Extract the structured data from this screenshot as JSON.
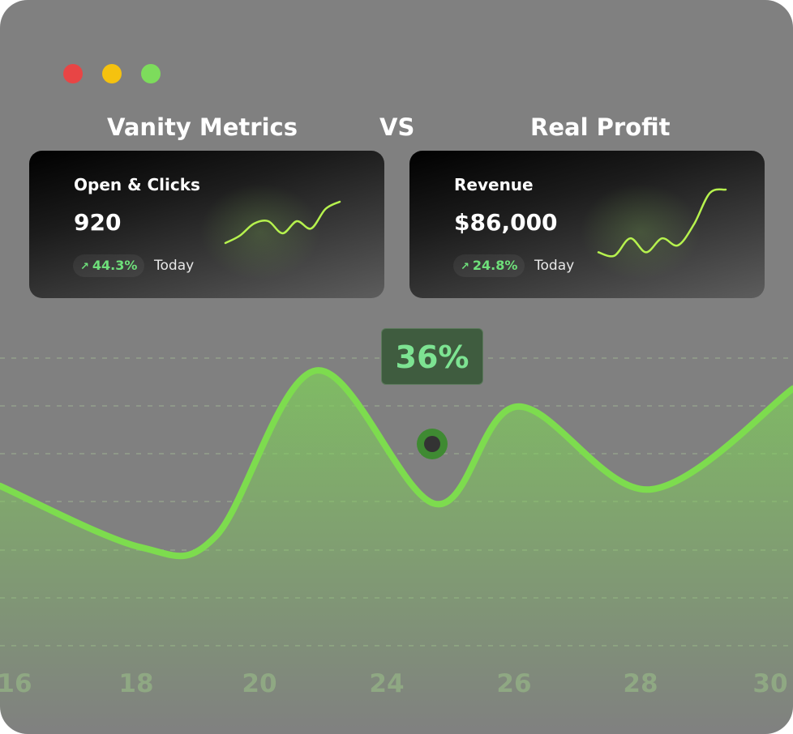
{
  "window": {
    "controls": [
      {
        "name": "close",
        "color": "#e84545"
      },
      {
        "name": "minimize",
        "color": "#f5c20f"
      },
      {
        "name": "maximize",
        "color": "#7ddc5c"
      }
    ]
  },
  "comparison": {
    "left_title": "Vanity Metrics",
    "vs_label": "VS",
    "right_title": "Real Profit"
  },
  "cards": [
    {
      "label": "Open & Clicks",
      "value": "920",
      "change_icon": "trend-up-arrow",
      "change": "44.3%",
      "period": "Today",
      "sparkline": [
        0.1,
        0.25,
        0.5,
        0.55,
        0.3,
        0.55,
        0.4,
        0.8,
        0.95
      ]
    },
    {
      "label": "Revenue",
      "value": "$86,000",
      "change_icon": "trend-up-arrow",
      "change": "24.8%",
      "period": "Today",
      "sparkline": [
        0.1,
        0.05,
        0.3,
        0.1,
        0.3,
        0.2,
        0.5,
        0.95,
        1.0
      ]
    }
  ],
  "accent_color": "#7ddc5c",
  "chart_data": {
    "type": "area",
    "x_labels": [
      "16",
      "18",
      "20",
      "24",
      "26",
      "28",
      "30"
    ],
    "points": [
      {
        "x": 0.0,
        "y": 45
      },
      {
        "x": 1.0,
        "y": 28
      },
      {
        "x": 1.6,
        "y": 31
      },
      {
        "x": 2.4,
        "y": 77
      },
      {
        "x": 3.35,
        "y": 40
      },
      {
        "x": 4.0,
        "y": 67
      },
      {
        "x": 5.05,
        "y": 44
      },
      {
        "x": 6.0,
        "y": 72
      }
    ],
    "highlight": {
      "x": 3.4,
      "label": "36%"
    },
    "ylim": [
      0,
      100
    ],
    "grid": "dashed-horizontal"
  }
}
